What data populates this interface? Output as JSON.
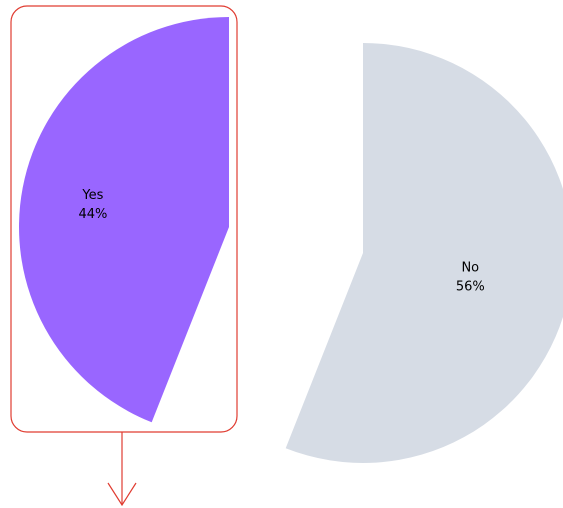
{
  "chart_data": {
    "type": "pie",
    "style": "exploded",
    "slices": [
      {
        "label": "Yes",
        "percent_label": "44%",
        "value": 44,
        "color": "#9966ff",
        "exploded": true
      },
      {
        "label": "No",
        "percent_label": "56%",
        "value": 56,
        "color": "#d6dce5",
        "exploded": false
      }
    ],
    "callout": {
      "highlights": "Yes",
      "border_color": "#e03c31",
      "arrow": "down"
    }
  }
}
